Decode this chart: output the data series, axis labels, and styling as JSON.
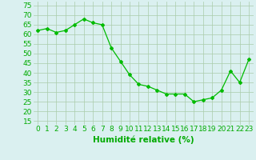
{
  "x": [
    0,
    1,
    2,
    3,
    4,
    5,
    6,
    7,
    8,
    9,
    10,
    11,
    12,
    13,
    14,
    15,
    16,
    17,
    18,
    19,
    20,
    21,
    22,
    23
  ],
  "y": [
    62,
    63,
    61,
    62,
    65,
    68,
    66,
    65,
    53,
    46,
    39,
    34,
    33,
    31,
    29,
    29,
    29,
    25,
    26,
    27,
    31,
    41,
    35,
    47
  ],
  "line_color": "#00bb00",
  "marker": "D",
  "marker_size": 2,
  "bg_color": "#daf0f0",
  "grid_color": "#aaccaa",
  "xlabel": "Humidité relative (%)",
  "xlabel_color": "#00aa00",
  "ylabel_ticks": [
    15,
    20,
    25,
    30,
    35,
    40,
    45,
    50,
    55,
    60,
    65,
    70,
    75
  ],
  "ylim": [
    13,
    77
  ],
  "xlim": [
    -0.5,
    23.5
  ],
  "tick_color": "#00aa00",
  "tick_labelsize": 6.5,
  "xlabel_fontsize": 7.5
}
